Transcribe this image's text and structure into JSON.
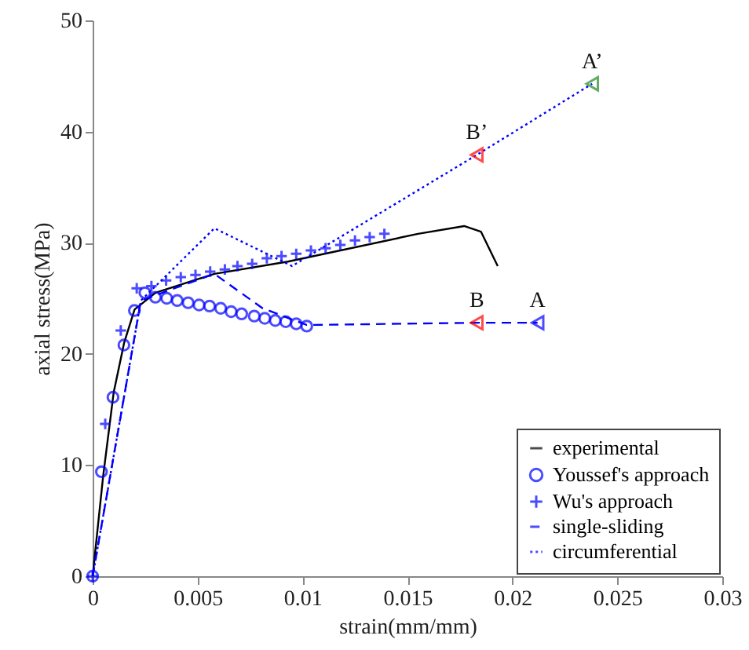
{
  "chart_data": {
    "type": "line",
    "xlabel": "strain(mm/mm)",
    "ylabel": "axial stress(MPa)",
    "xlim": [
      0,
      0.03
    ],
    "xticks": [
      0,
      0.005,
      0.01,
      0.015,
      0.02,
      0.025,
      0.03
    ],
    "ylim": [
      0,
      50
    ],
    "yticks": [
      0,
      10,
      20,
      30,
      40,
      50
    ],
    "grid": false,
    "legend": "bottom right",
    "series": [
      {
        "name": "experimental",
        "color": "#000000",
        "line_style": "solid",
        "marker": "none",
        "x": [
          0,
          0.0005,
          0.001,
          0.0015,
          0.002,
          0.003,
          0.0058,
          0.0093,
          0.0155,
          0.0177,
          0.0185,
          0.0193
        ],
        "values": [
          0,
          9,
          16.5,
          21,
          24,
          25.5,
          27.2,
          28.3,
          30.8,
          31.5,
          31,
          27.9
        ]
      },
      {
        "name": "Youssef's approach",
        "type": "scatter",
        "color": "#0000ff",
        "marker": "circle",
        "x": [
          0,
          0.00042,
          0.00097,
          0.00149,
          0.00199,
          0.00249,
          0.00299,
          0.00353,
          0.00403,
          0.00455,
          0.00507,
          0.00557,
          0.0061,
          0.0066,
          0.0071,
          0.0077,
          0.0082,
          0.0087,
          0.0092,
          0.0097,
          0.0102
        ],
        "values": [
          0,
          9.4,
          16.1,
          20.8,
          23.9,
          25.5,
          25.1,
          25,
          24.8,
          24.6,
          24.4,
          24.3,
          24.1,
          23.8,
          23.6,
          23.4,
          23.2,
          23,
          22.9,
          22.7,
          22.5
        ]
      },
      {
        "name": "Wu's approach",
        "type": "scatter",
        "color": "#0000ff",
        "marker": "cross",
        "x": [
          0,
          0.0006,
          0.00134,
          0.0021,
          0.0028,
          0.0035,
          0.0042,
          0.0049,
          0.0056,
          0.0063,
          0.0069,
          0.0076,
          0.0083,
          0.009,
          0.0097,
          0.0104,
          0.0111,
          0.0118,
          0.0125,
          0.0132,
          0.0139
        ],
        "values": [
          0,
          13.7,
          22.1,
          25.9,
          26.1,
          26.6,
          26.9,
          27.1,
          27.4,
          27.6,
          27.9,
          28.1,
          28.6,
          28.8,
          29,
          29.3,
          29.5,
          29.8,
          30.2,
          30.5,
          30.8
        ]
      },
      {
        "name": "single-sliding",
        "color": "#0000ff",
        "line_style": "dashed",
        "marker": "none",
        "x": [
          0,
          0.0023,
          0.0058,
          0.0081,
          0.0102,
          0.0183,
          0.0212
        ],
        "values": [
          0,
          24.8,
          27.2,
          24.1,
          22.6,
          22.8,
          22.8
        ]
      },
      {
        "name": "circumferential",
        "color": "#0000ff",
        "line_style": "dotted",
        "marker": "none",
        "x": [
          0,
          0.0023,
          0.0058,
          0.0095,
          0.0183,
          0.0238
        ],
        "values": [
          0,
          24.8,
          31.3,
          27.9,
          37.9,
          44.3
        ]
      },
      {
        "type": "scatter",
        "marker": "triangle",
        "color": "#ff0000",
        "x": [
          0.0183,
          0.0183
        ],
        "values": [
          22.8,
          37.9
        ]
      },
      {
        "type": "scatter",
        "marker": "triangle",
        "color": "#0000ff",
        "x": [
          0.0212
        ],
        "values": [
          22.8
        ]
      },
      {
        "type": "scatter",
        "marker": "triangle",
        "color": "#228b22",
        "x": [
          0.0238
        ],
        "values": [
          44.3
        ]
      }
    ],
    "annotations": [
      {
        "text": "A",
        "x": 0.0212,
        "y": 22.8
      },
      {
        "text": "B",
        "x": 0.0183,
        "y": 22.8
      },
      {
        "text": "B’",
        "x": 0.0183,
        "y": 37.9
      },
      {
        "text": "A’",
        "x": 0.0238,
        "y": 44.3
      }
    ]
  }
}
